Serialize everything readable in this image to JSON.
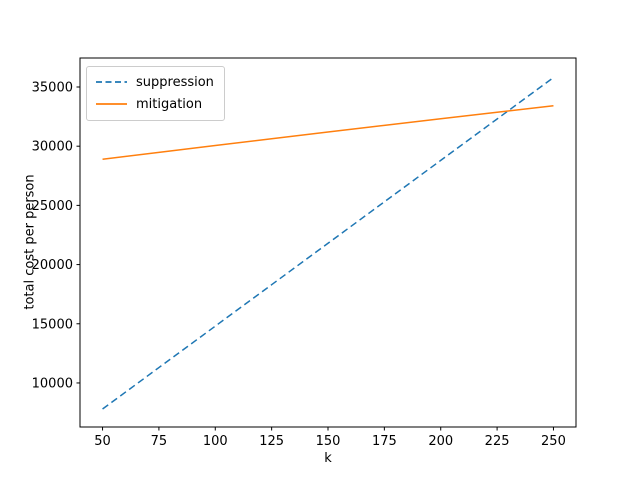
{
  "chart_data": {
    "type": "line",
    "title": "",
    "xlabel": "k",
    "ylabel": "total cost per person",
    "xlim": [
      40,
      260
    ],
    "ylim": [
      6280,
      37450
    ],
    "xticks": [
      50,
      75,
      100,
      125,
      150,
      175,
      200,
      225,
      250
    ],
    "yticks": [
      10000,
      15000,
      20000,
      25000,
      30000,
      35000
    ],
    "grid": false,
    "legend_position": "upper left",
    "x": [
      50,
      75,
      100,
      125,
      150,
      175,
      200,
      225,
      250
    ],
    "series": [
      {
        "name": "suppression",
        "color": "#1f77b4",
        "style": "dashed",
        "linewidth": 1.5,
        "values": [
          7800,
          11300,
          14800,
          18300,
          21800,
          25300,
          28800,
          32300,
          35800
        ]
      },
      {
        "name": "mitigation",
        "color": "#ff7f0e",
        "style": "solid",
        "linewidth": 1.5,
        "values": [
          28900,
          29480,
          30060,
          30630,
          31200,
          31760,
          32320,
          32870,
          33420
        ]
      }
    ],
    "frame_color": "#000000",
    "background_color": "#ffffff"
  }
}
